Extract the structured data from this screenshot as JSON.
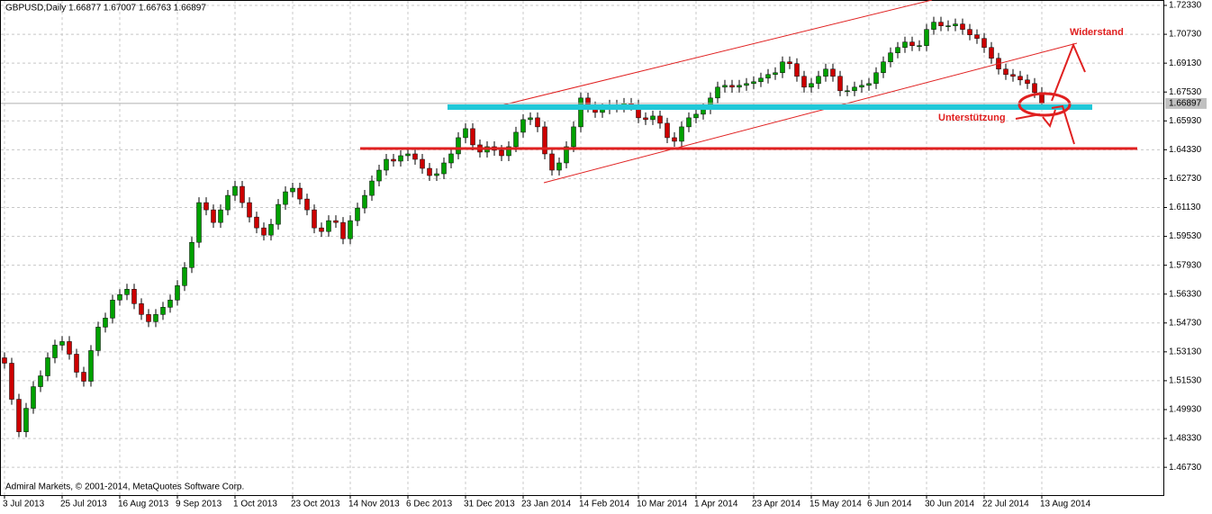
{
  "chart_data": {
    "type": "candlestick",
    "title": "GBPUSD,Daily",
    "quote": "1.66877 1.67007 1.66763 1.66897",
    "current_price": {
      "value": 1.66897,
      "label": "1.66897"
    },
    "copyright": "Admiral Markets, © 2001-2014, MetaQuotes Software Corp.",
    "annotations": [
      "Widerstand",
      "Unterstützung"
    ],
    "up_color": "#00a000",
    "down_color": "#cc0000",
    "wick_color": "#000000",
    "grid": true,
    "ylim": [
      1.4519,
      1.7263
    ],
    "yticks": [
      {
        "value": 1.4673,
        "label": "1.46730"
      },
      {
        "value": 1.4833,
        "label": "1.48330"
      },
      {
        "value": 1.4993,
        "label": "1.49930"
      },
      {
        "value": 1.5153,
        "label": "1.51530"
      },
      {
        "value": 1.5313,
        "label": "1.53130"
      },
      {
        "value": 1.5473,
        "label": "1.54730"
      },
      {
        "value": 1.5633,
        "label": "1.56330"
      },
      {
        "value": 1.5793,
        "label": "1.57930"
      },
      {
        "value": 1.5953,
        "label": "1.59530"
      },
      {
        "value": 1.6113,
        "label": "1.61130"
      },
      {
        "value": 1.6273,
        "label": "1.62730"
      },
      {
        "value": 1.6433,
        "label": "1.64330"
      },
      {
        "value": 1.6593,
        "label": "1.65930"
      },
      {
        "value": 1.6753,
        "label": "1.67530"
      },
      {
        "value": 1.6913,
        "label": "1.69130"
      },
      {
        "value": 1.7073,
        "label": "1.70730"
      },
      {
        "value": 1.7233,
        "label": "1.72330"
      }
    ],
    "categories": [
      "3 Jul 2013",
      null,
      null,
      null,
      null,
      null,
      null,
      null,
      "25 Jul 2013",
      null,
      null,
      null,
      null,
      null,
      null,
      null,
      "16 Aug 2013",
      null,
      null,
      null,
      null,
      null,
      null,
      null,
      "9 Sep 2013",
      null,
      null,
      null,
      null,
      null,
      null,
      null,
      "1 Oct 2013",
      null,
      null,
      null,
      null,
      null,
      null,
      null,
      "23 Oct 2013",
      null,
      null,
      null,
      null,
      null,
      null,
      null,
      "14 Nov 2013",
      null,
      null,
      null,
      null,
      null,
      null,
      null,
      "6 Dec 2013",
      null,
      null,
      null,
      null,
      null,
      null,
      null,
      "31 Dec 2013",
      null,
      null,
      null,
      null,
      null,
      null,
      null,
      "23 Jan 2014",
      null,
      null,
      null,
      null,
      null,
      null,
      null,
      "14 Feb 2014",
      null,
      null,
      null,
      null,
      null,
      null,
      null,
      "10 Mar 2014",
      null,
      null,
      null,
      null,
      null,
      null,
      null,
      "1 Apr 2014",
      null,
      null,
      null,
      null,
      null,
      null,
      null,
      "23 Apr 2014",
      null,
      null,
      null,
      null,
      null,
      null,
      null,
      "15 May 2014",
      null,
      null,
      null,
      null,
      null,
      null,
      null,
      "6 Jun 2014",
      null,
      null,
      null,
      null,
      null,
      null,
      null,
      "30 Jun 2014",
      null,
      null,
      null,
      null,
      null,
      null,
      null,
      "22 Jul 2014",
      null,
      null,
      null,
      null,
      null,
      null,
      null,
      "13 Aug 2014"
    ],
    "ohlc": [
      [
        1.528,
        1.531,
        1.522,
        1.525
      ],
      [
        1.525,
        1.528,
        1.502,
        1.505
      ],
      [
        1.505,
        1.508,
        1.484,
        1.487
      ],
      [
        1.487,
        1.503,
        1.484,
        1.5
      ],
      [
        1.5,
        1.515,
        1.497,
        1.512
      ],
      [
        1.512,
        1.521,
        1.509,
        1.518
      ],
      [
        1.518,
        1.531,
        1.515,
        1.528
      ],
      [
        1.528,
        1.538,
        1.525,
        1.535
      ],
      [
        1.535,
        1.54,
        1.532,
        1.537
      ],
      [
        1.537,
        1.54,
        1.527,
        1.53
      ],
      [
        1.53,
        1.533,
        1.517,
        1.52
      ],
      [
        1.52,
        1.523,
        1.512,
        1.515
      ],
      [
        1.515,
        1.535,
        1.512,
        1.532
      ],
      [
        1.532,
        1.548,
        1.529,
        1.545
      ],
      [
        1.545,
        1.553,
        1.542,
        1.55
      ],
      [
        1.55,
        1.563,
        1.547,
        1.56
      ],
      [
        1.56,
        1.566,
        1.557,
        1.563
      ],
      [
        1.563,
        1.569,
        1.56,
        1.566
      ],
      [
        1.566,
        1.569,
        1.555,
        1.558
      ],
      [
        1.558,
        1.561,
        1.549,
        1.552
      ],
      [
        1.552,
        1.555,
        1.545,
        1.548
      ],
      [
        1.548,
        1.555,
        1.545,
        1.552
      ],
      [
        1.552,
        1.559,
        1.549,
        1.556
      ],
      [
        1.556,
        1.563,
        1.553,
        1.56
      ],
      [
        1.56,
        1.571,
        1.557,
        1.568
      ],
      [
        1.568,
        1.581,
        1.565,
        1.578
      ],
      [
        1.578,
        1.595,
        1.575,
        1.592
      ],
      [
        1.592,
        1.617,
        1.589,
        1.614
      ],
      [
        1.614,
        1.617,
        1.607,
        1.61
      ],
      [
        1.61,
        1.613,
        1.6,
        1.603
      ],
      [
        1.603,
        1.613,
        1.6,
        1.61
      ],
      [
        1.61,
        1.621,
        1.607,
        1.618
      ],
      [
        1.618,
        1.626,
        1.615,
        1.623
      ],
      [
        1.623,
        1.626,
        1.611,
        1.614
      ],
      [
        1.614,
        1.617,
        1.603,
        1.606
      ],
      [
        1.606,
        1.609,
        1.597,
        1.6
      ],
      [
        1.6,
        1.603,
        1.593,
        1.596
      ],
      [
        1.596,
        1.605,
        1.593,
        1.602
      ],
      [
        1.602,
        1.616,
        1.599,
        1.613
      ],
      [
        1.613,
        1.623,
        1.61,
        1.62
      ],
      [
        1.62,
        1.625,
        1.617,
        1.622
      ],
      [
        1.622,
        1.625,
        1.613,
        1.616
      ],
      [
        1.616,
        1.619,
        1.607,
        1.61
      ],
      [
        1.61,
        1.613,
        1.597,
        1.6
      ],
      [
        1.6,
        1.603,
        1.595,
        1.598
      ],
      [
        1.598,
        1.607,
        1.595,
        1.604
      ],
      [
        1.604,
        1.607,
        1.6,
        1.603
      ],
      [
        1.603,
        1.606,
        1.591,
        1.594
      ],
      [
        1.594,
        1.607,
        1.591,
        1.604
      ],
      [
        1.604,
        1.614,
        1.601,
        1.611
      ],
      [
        1.611,
        1.621,
        1.608,
        1.618
      ],
      [
        1.618,
        1.629,
        1.615,
        1.626
      ],
      [
        1.626,
        1.635,
        1.623,
        1.632
      ],
      [
        1.632,
        1.641,
        1.629,
        1.638
      ],
      [
        1.638,
        1.641,
        1.634,
        1.637
      ],
      [
        1.637,
        1.643,
        1.634,
        1.64
      ],
      [
        1.64,
        1.644,
        1.637,
        1.641
      ],
      [
        1.641,
        1.644,
        1.635,
        1.638
      ],
      [
        1.638,
        1.641,
        1.63,
        1.633
      ],
      [
        1.633,
        1.636,
        1.626,
        1.629
      ],
      [
        1.629,
        1.633,
        1.626,
        1.63
      ],
      [
        1.63,
        1.639,
        1.627,
        1.636
      ],
      [
        1.636,
        1.644,
        1.633,
        1.641
      ],
      [
        1.641,
        1.653,
        1.638,
        1.65
      ],
      [
        1.65,
        1.658,
        1.647,
        1.655
      ],
      [
        1.655,
        1.658,
        1.643,
        1.646
      ],
      [
        1.646,
        1.649,
        1.639,
        1.642
      ],
      [
        1.642,
        1.648,
        1.639,
        1.645
      ],
      [
        1.645,
        1.648,
        1.64,
        1.643
      ],
      [
        1.643,
        1.646,
        1.637,
        1.64
      ],
      [
        1.64,
        1.648,
        1.637,
        1.645
      ],
      [
        1.645,
        1.656,
        1.642,
        1.653
      ],
      [
        1.653,
        1.663,
        1.65,
        1.66
      ],
      [
        1.66,
        1.664,
        1.657,
        1.661
      ],
      [
        1.661,
        1.664,
        1.653,
        1.656
      ],
      [
        1.656,
        1.659,
        1.638,
        1.641
      ],
      [
        1.641,
        1.644,
        1.629,
        1.632
      ],
      [
        1.632,
        1.639,
        1.629,
        1.636
      ],
      [
        1.636,
        1.648,
        1.633,
        1.645
      ],
      [
        1.645,
        1.659,
        1.642,
        1.656
      ],
      [
        1.656,
        1.675,
        1.653,
        1.672
      ],
      [
        1.672,
        1.675,
        1.664,
        1.667
      ],
      [
        1.667,
        1.67,
        1.661,
        1.664
      ],
      [
        1.664,
        1.669,
        1.661,
        1.666
      ],
      [
        1.666,
        1.671,
        1.663,
        1.668
      ],
      [
        1.668,
        1.671,
        1.664,
        1.667
      ],
      [
        1.667,
        1.672,
        1.664,
        1.669
      ],
      [
        1.669,
        1.672,
        1.665,
        1.668
      ],
      [
        1.668,
        1.671,
        1.658,
        1.661
      ],
      [
        1.661,
        1.664,
        1.657,
        1.66
      ],
      [
        1.66,
        1.665,
        1.657,
        1.662
      ],
      [
        1.662,
        1.665,
        1.655,
        1.658
      ],
      [
        1.658,
        1.661,
        1.647,
        1.65
      ],
      [
        1.65,
        1.653,
        1.645,
        1.648
      ],
      [
        1.648,
        1.659,
        1.645,
        1.656
      ],
      [
        1.656,
        1.664,
        1.653,
        1.661
      ],
      [
        1.661,
        1.666,
        1.658,
        1.663
      ],
      [
        1.663,
        1.669,
        1.66,
        1.666
      ],
      [
        1.666,
        1.675,
        1.663,
        1.672
      ],
      [
        1.672,
        1.681,
        1.669,
        1.678
      ],
      [
        1.678,
        1.682,
        1.675,
        1.679
      ],
      [
        1.679,
        1.682,
        1.675,
        1.678
      ],
      [
        1.678,
        1.682,
        1.675,
        1.679
      ],
      [
        1.679,
        1.683,
        1.676,
        1.68
      ],
      [
        1.68,
        1.684,
        1.677,
        1.681
      ],
      [
        1.681,
        1.686,
        1.678,
        1.683
      ],
      [
        1.683,
        1.688,
        1.68,
        1.685
      ],
      [
        1.685,
        1.689,
        1.682,
        1.686
      ],
      [
        1.686,
        1.695,
        1.683,
        1.692
      ],
      [
        1.692,
        1.695,
        1.688,
        1.691
      ],
      [
        1.691,
        1.694,
        1.681,
        1.684
      ],
      [
        1.684,
        1.687,
        1.675,
        1.678
      ],
      [
        1.678,
        1.683,
        1.675,
        1.68
      ],
      [
        1.68,
        1.687,
        1.677,
        1.684
      ],
      [
        1.684,
        1.691,
        1.681,
        1.688
      ],
      [
        1.688,
        1.691,
        1.681,
        1.684
      ],
      [
        1.684,
        1.687,
        1.673,
        1.676
      ],
      [
        1.676,
        1.679,
        1.673,
        1.676
      ],
      [
        1.676,
        1.681,
        1.673,
        1.678
      ],
      [
        1.678,
        1.682,
        1.675,
        1.679
      ],
      [
        1.679,
        1.683,
        1.676,
        1.68
      ],
      [
        1.68,
        1.689,
        1.677,
        1.686
      ],
      [
        1.686,
        1.695,
        1.683,
        1.692
      ],
      [
        1.692,
        1.7,
        1.689,
        1.697
      ],
      [
        1.697,
        1.703,
        1.694,
        1.7
      ],
      [
        1.7,
        1.706,
        1.697,
        1.703
      ],
      [
        1.703,
        1.706,
        1.698,
        1.701
      ],
      [
        1.701,
        1.704,
        1.698,
        1.701
      ],
      [
        1.701,
        1.713,
        1.698,
        1.71
      ],
      [
        1.71,
        1.717,
        1.707,
        1.714
      ],
      [
        1.714,
        1.717,
        1.709,
        1.712
      ],
      [
        1.712,
        1.715,
        1.709,
        1.712
      ],
      [
        1.712,
        1.716,
        1.709,
        1.713
      ],
      [
        1.713,
        1.716,
        1.707,
        1.71
      ],
      [
        1.71,
        1.713,
        1.704,
        1.707
      ],
      [
        1.707,
        1.71,
        1.702,
        1.705
      ],
      [
        1.705,
        1.708,
        1.697,
        1.7
      ],
      [
        1.7,
        1.703,
        1.691,
        1.694
      ],
      [
        1.694,
        1.697,
        1.685,
        1.688
      ],
      [
        1.688,
        1.691,
        1.682,
        1.685
      ],
      [
        1.685,
        1.688,
        1.681,
        1.684
      ],
      [
        1.684,
        1.687,
        1.679,
        1.682
      ],
      [
        1.682,
        1.685,
        1.677,
        1.68
      ],
      [
        1.68,
        1.683,
        1.672,
        1.675
      ],
      [
        1.675,
        1.678,
        1.666,
        1.669
      ]
    ]
  }
}
